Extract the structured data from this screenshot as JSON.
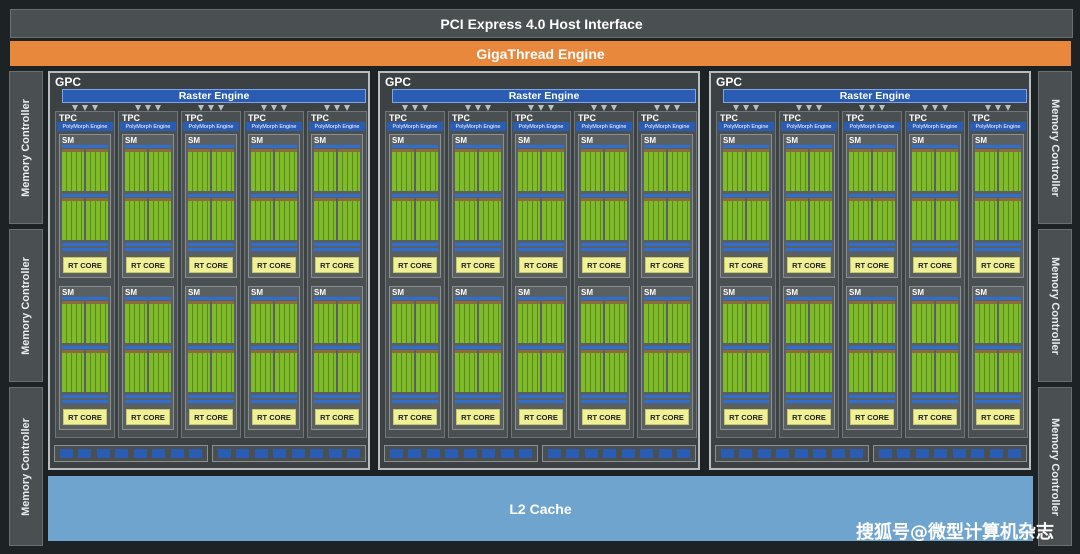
{
  "header": {
    "pcie": "PCI Express 4.0 Host Interface",
    "gigathread": "GigaThread Engine"
  },
  "memory_controller_label": "Memory Controller",
  "gpc": {
    "label": "GPC",
    "raster": "Raster Engine",
    "tpc": "TPC",
    "polymorph": "PolyMorph Engine",
    "sm": "SM",
    "rt_core": "RT CORE"
  },
  "l2": "L2 Cache",
  "watermark": "搜狐号@微型计算机杂志",
  "colors": {
    "pcie": "#4a4f51",
    "gigathread": "#e8883c",
    "raster": "#2a5cb4",
    "cuda_core": "#7fba2a",
    "rt_core": "#f0f095",
    "l2": "#6fa4cf"
  }
}
